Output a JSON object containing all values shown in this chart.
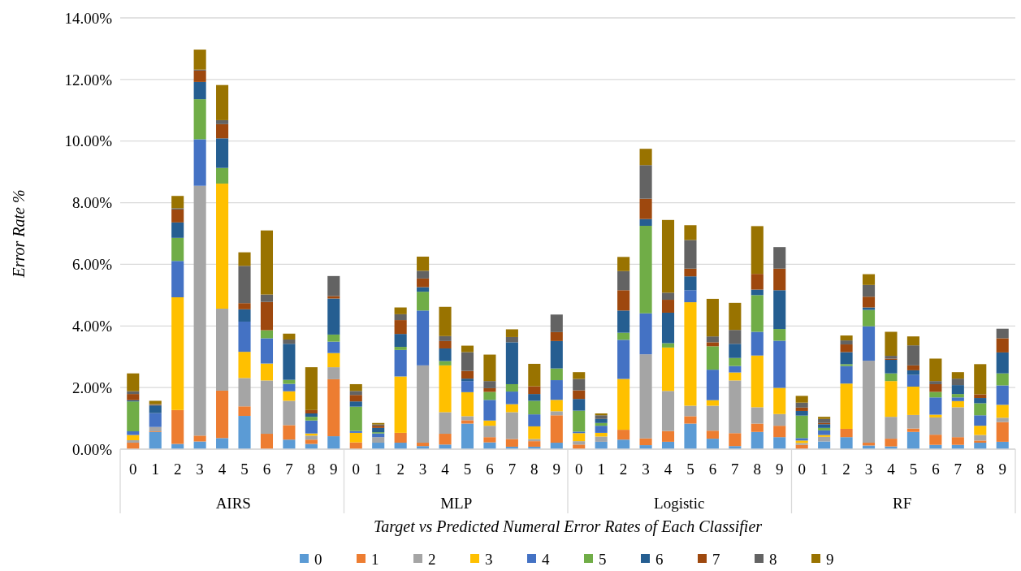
{
  "chart_data": {
    "type": "bar",
    "stacked": true,
    "xlabel": "Target vs Predicted Numeral Error Rates of Each Classifier",
    "ylabel": "Error Rate %",
    "categories": [
      "0",
      "1",
      "2",
      "3",
      "4",
      "5",
      "6",
      "7",
      "8",
      "9",
      "0",
      "1",
      "2",
      "3",
      "4",
      "5",
      "6",
      "7",
      "8",
      "9",
      "0",
      "1",
      "2",
      "3",
      "4",
      "5",
      "6",
      "7",
      "8",
      "9",
      "0",
      "1",
      "2",
      "3",
      "4",
      "5",
      "6",
      "7",
      "8",
      "9"
    ],
    "annotations": [
      "AIRS",
      "MLP",
      "Logistic",
      "RF"
    ],
    "ylim": [
      0,
      14
    ],
    "yticks": [
      {
        "value": 0,
        "label": "0.00%"
      },
      {
        "value": 2,
        "label": "2.00%"
      },
      {
        "value": 4,
        "label": "4.00%"
      },
      {
        "value": 6,
        "label": "6.00%"
      },
      {
        "value": 8,
        "label": "8.00%"
      },
      {
        "value": 10,
        "label": "10.00%"
      },
      {
        "value": 12,
        "label": "12.00%"
      },
      {
        "value": 14,
        "label": "14.00%"
      }
    ],
    "grid": "y",
    "legend": "bottom",
    "series": [
      {
        "name": "0",
        "color": "#5b9bd5",
        "values": [
          0,
          0.56,
          0.17,
          0.25,
          0.36,
          1.08,
          null,
          0.31,
          0.17,
          0.42,
          0,
          0.21,
          0.21,
          0.1,
          0.15,
          0.83,
          0.22,
          0.08,
          0.08,
          0.21,
          0,
          0.24,
          0.31,
          0.13,
          0.24,
          0.83,
          0.34,
          0.1,
          0.56,
          0.39,
          0,
          0.25,
          0.39,
          0.12,
          0.09,
          0.56,
          0.14,
          0.14,
          0.21,
          0.24
        ]
      },
      {
        "name": "1",
        "color": "#ed7d31",
        "values": [
          0.21,
          0.02,
          1.1,
          0.19,
          1.54,
          0.31,
          0.5,
          0.47,
          0.14,
          1.85,
          0.22,
          0,
          0.32,
          0.11,
          0.35,
          0.11,
          0.17,
          0.25,
          0.18,
          0.89,
          0.15,
          0,
          0.32,
          0.22,
          0.35,
          0.24,
          0.26,
          0.42,
          0.27,
          0.37,
          0.14,
          0,
          0.27,
          0.09,
          0.25,
          0.11,
          0.33,
          0.25,
          0.07,
          0.64
        ]
      },
      {
        "name": "2",
        "color": "#a5a5a5",
        "values": [
          0.08,
          0.14,
          null,
          8.11,
          2.66,
          0.92,
          1.73,
          0.79,
          0.13,
          0.39,
          null,
          0.18,
          0,
          2.51,
          0.7,
          0.13,
          0.37,
          0.87,
          0.07,
          0.13,
          0.11,
          0.17,
          0,
          2.73,
          1.3,
          0.34,
          0.81,
          1.71,
          0.53,
          0.38,
          0.06,
          0.15,
          0,
          2.66,
          0.71,
          0.44,
          0.56,
          0.97,
          0.18,
          0.14
        ]
      },
      {
        "name": "3",
        "color": "#ffc000",
        "values": [
          0.17,
          0,
          3.66,
          0,
          4.06,
          0.85,
          0.55,
          0.31,
          0.07,
          0.46,
          0.31,
          0,
          1.83,
          0,
          1.52,
          0.78,
          0.17,
          0.26,
          0.41,
          0.37,
          0.26,
          0.12,
          1.65,
          0,
          1.41,
          3.36,
          0.18,
          0.26,
          1.68,
          0.85,
          0.08,
          0.06,
          1.47,
          0,
          1.16,
          0.92,
          0.09,
          0.2,
          0.3,
          0.42
        ]
      },
      {
        "name": "4",
        "color": "#4472c4",
        "values": [
          0.12,
          0.45,
          1.18,
          1.51,
          0,
          0.98,
          0.82,
          0.24,
          0.42,
          0.37,
          0.06,
          0.12,
          0.86,
          1.78,
          0,
          0.36,
          0.67,
          0.41,
          0.39,
          0.64,
          0.05,
          0.23,
          1.27,
          1.33,
          0,
          0.39,
          0.99,
          0.21,
          0.77,
          1.53,
          0.08,
          0.15,
          0.57,
          1.12,
          0,
          0.38,
          0.56,
          0.12,
          0.34,
          0.63
        ]
      },
      {
        "name": "5",
        "color": "#70ad47",
        "values": [
          0.97,
          0,
          0.75,
          1.3,
          0.51,
          0,
          0.26,
          0.13,
          0.12,
          0.23,
          0.79,
          0.04,
          0.1,
          0.61,
          0.14,
          0,
          0.26,
          0.24,
          0.44,
          0.38,
          0.68,
          0.09,
          0.23,
          2.84,
          0.14,
          0,
          0.76,
          0.26,
          1.19,
          0.38,
          0.73,
          0.08,
          0.06,
          0.53,
          0.25,
          0,
          0.18,
          0.11,
          0.39,
          0.39
        ]
      },
      {
        "name": "6",
        "color": "#255e91",
        "values": [
          0.04,
          0.25,
          0.5,
          0.56,
          0.96,
          0.4,
          0,
          1.17,
          0.11,
          1.17,
          0.17,
          0.14,
          0.42,
          0.15,
          0.41,
          0.08,
          0,
          1.36,
          0.22,
          0.89,
          0.38,
          0.13,
          0.72,
          0.22,
          0.99,
          0.45,
          0,
          0.46,
          0.18,
          1.26,
          0.15,
          0.12,
          0.39,
          0.08,
          0.44,
          0.15,
          0,
          0.29,
          0.17,
          0.68
        ]
      },
      {
        "name": "7",
        "color": "#9e480e",
        "values": [
          0.2,
          0.02,
          0.42,
          0.37,
          0.46,
          0.2,
          0.92,
          0,
          0.11,
          0.08,
          0.21,
          0.07,
          0.45,
          0.28,
          0.24,
          0.25,
          0.12,
          0,
          0.25,
          0.29,
          0.28,
          0,
          0.66,
          0.66,
          0.42,
          0.25,
          0.13,
          0,
          0.51,
          0.7,
          0.11,
          0.04,
          0.25,
          0.35,
          0.04,
          0.16,
          0.25,
          0,
          0.12,
          0.46
        ]
      },
      {
        "name": "8",
        "color": "#636363",
        "values": [
          0.09,
          0.02,
          0.04,
          0.03,
          0.13,
          1.21,
          0.24,
          0.14,
          0,
          0.65,
          0.13,
          0.04,
          0.19,
          0.25,
          0.16,
          0.61,
          0.23,
          0.17,
          0,
          0.57,
          0.37,
          0.12,
          0.62,
          1.09,
          0.23,
          0.93,
          0.19,
          0.45,
          0,
          0.7,
          0.16,
          0.13,
          0.13,
          0.38,
          0.09,
          0.65,
          0.1,
          0.21,
          0,
          0.31
        ]
      },
      {
        "name": "9",
        "color": "#997300",
        "values": [
          0.58,
          0.11,
          0.4,
          0.65,
          1.14,
          0.44,
          2.08,
          0.19,
          1.39,
          0,
          0.22,
          0.05,
          0.22,
          0.46,
          0.95,
          0.21,
          0.86,
          0.25,
          0.73,
          0,
          0.22,
          0.06,
          0.46,
          0.53,
          2.36,
          0.48,
          1.22,
          0.88,
          1.55,
          0,
          0.22,
          0.07,
          0.16,
          0.35,
          0.78,
          0.29,
          0.73,
          0.21,
          0.98,
          0
        ]
      }
    ]
  }
}
